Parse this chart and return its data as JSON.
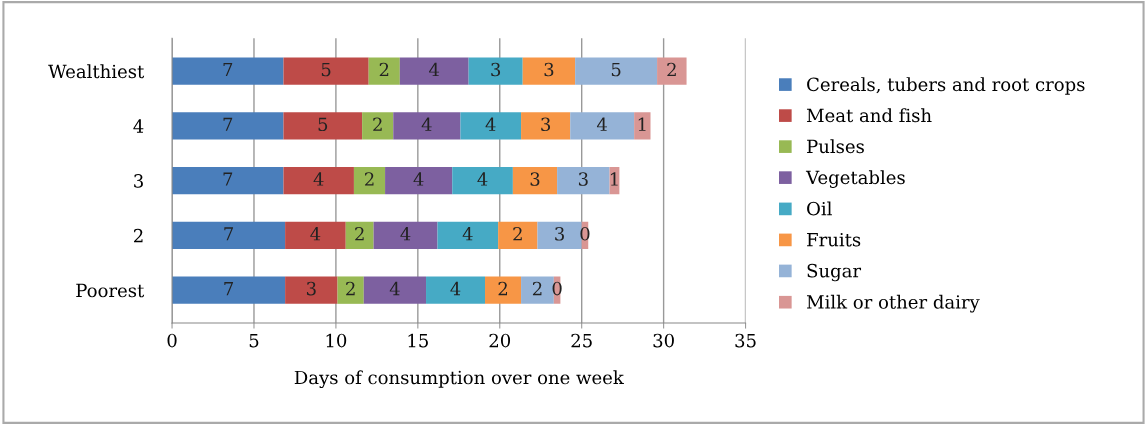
{
  "chart_data": {
    "type": "bar",
    "orientation": "horizontal",
    "stacked": true,
    "xlabel": "Days of consumption over one week",
    "categories": [
      "Wealthiest",
      "4",
      "3",
      "2",
      "Poorest"
    ],
    "series": [
      {
        "name": "Cereals, tubers and root crops",
        "color": "#4a7ebb",
        "values": [
          6.8,
          6.8,
          6.8,
          6.9,
          6.9
        ],
        "value_labels": [
          "7",
          "7",
          "7",
          "7",
          "7"
        ]
      },
      {
        "name": "Meat and fish",
        "color": "#be4b48",
        "values": [
          5.2,
          4.8,
          4.3,
          3.7,
          3.2
        ],
        "value_labels": [
          "5",
          "5",
          "4",
          "4",
          "3"
        ]
      },
      {
        "name": "Pulses",
        "color": "#98b954",
        "values": [
          1.9,
          1.9,
          1.9,
          1.7,
          1.6
        ],
        "value_labels": [
          "2",
          "2",
          "2",
          "2",
          "2"
        ]
      },
      {
        "name": "Vegetables",
        "color": "#7d60a0",
        "values": [
          4.2,
          4.1,
          4.1,
          3.9,
          3.8
        ],
        "value_labels": [
          "4",
          "4",
          "4",
          "4",
          "4"
        ]
      },
      {
        "name": "Oil",
        "color": "#46aac5",
        "values": [
          3.3,
          3.7,
          3.7,
          3.7,
          3.6
        ],
        "value_labels": [
          "3",
          "4",
          "4",
          "4",
          "4"
        ]
      },
      {
        "name": "Fruits",
        "color": "#f79646",
        "values": [
          3.2,
          3.0,
          2.7,
          2.4,
          2.2
        ],
        "value_labels": [
          "3",
          "3",
          "3",
          "2",
          "2"
        ]
      },
      {
        "name": "Sugar",
        "color": "#95b3d7",
        "values": [
          5.0,
          3.9,
          3.2,
          2.7,
          2.0
        ],
        "value_labels": [
          "5",
          "4",
          "3",
          "3",
          "2"
        ]
      },
      {
        "name": "Milk or other dairy",
        "color": "#d99694",
        "values": [
          1.8,
          1.0,
          0.6,
          0.4,
          0.4
        ],
        "value_labels": [
          "2",
          "1",
          "1",
          "0",
          "0"
        ]
      }
    ],
    "xlim": [
      0,
      35
    ],
    "xticks": [
      0,
      5,
      10,
      15,
      20,
      25,
      30,
      35
    ],
    "grid": "x",
    "legend": "right"
  }
}
